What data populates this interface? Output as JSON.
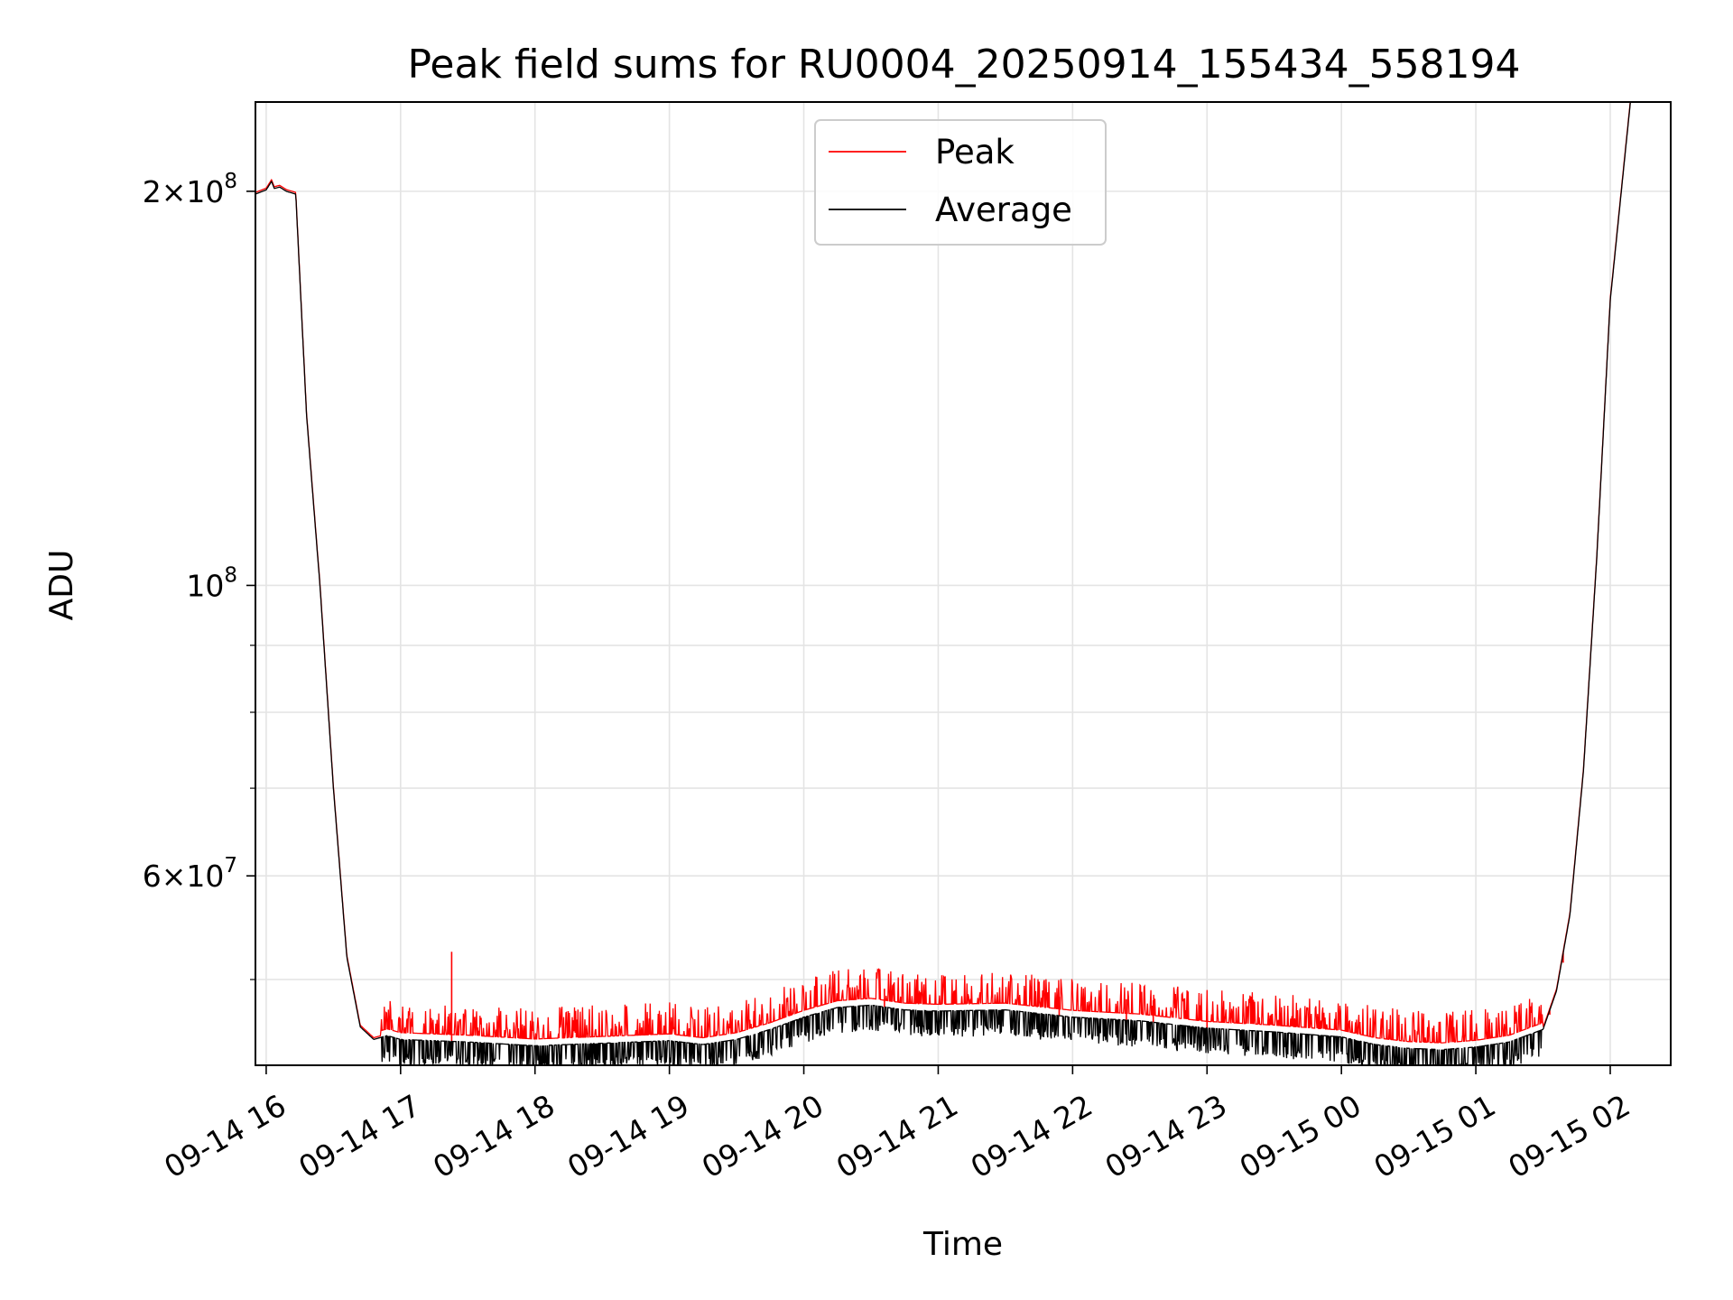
{
  "chart_data": {
    "type": "line",
    "title": "Peak field sums for RU0004_20250914_155434_558194",
    "xlabel": "Time",
    "ylabel": "ADU",
    "yscale": "log",
    "ylim": [
      43000000,
      234000000
    ],
    "xlim_hours_from_0914_16": [
      -0.08,
      10.45
    ],
    "grid": true,
    "legend": {
      "position": "top-center",
      "entries": [
        {
          "name": "Peak",
          "color": "#ff0000"
        },
        {
          "name": "Average",
          "color": "#000000"
        }
      ]
    },
    "x_ticks": [
      {
        "label": "09-14 16",
        "hours": 0
      },
      {
        "label": "09-14 17",
        "hours": 1
      },
      {
        "label": "09-14 18",
        "hours": 2
      },
      {
        "label": "09-14 19",
        "hours": 3
      },
      {
        "label": "09-14 20",
        "hours": 4
      },
      {
        "label": "09-14 21",
        "hours": 5
      },
      {
        "label": "09-14 22",
        "hours": 6
      },
      {
        "label": "09-14 23",
        "hours": 7
      },
      {
        "label": "09-15 00",
        "hours": 8
      },
      {
        "label": "09-15 01",
        "hours": 9
      },
      {
        "label": "09-15 02",
        "hours": 10
      }
    ],
    "y_major_ticks": [
      {
        "base": "2",
        "times": "×",
        "exp_base": "10",
        "exp": "8",
        "value": 200000000
      },
      {
        "base": "",
        "times": "",
        "exp_base": "10",
        "exp": "8",
        "value": 100000000
      },
      {
        "base": "6",
        "times": "×",
        "exp_base": "10",
        "exp": "7",
        "value": 60000000
      }
    ],
    "y_minor_ticks": [
      50000000,
      70000000,
      80000000,
      90000000
    ],
    "series": [
      {
        "name": "Average",
        "color": "#000000",
        "x_hours": [
          -0.08,
          0.0,
          0.04,
          0.06,
          0.1,
          0.15,
          0.22,
          0.3,
          0.4,
          0.5,
          0.6,
          0.7,
          0.8,
          0.9,
          1.0,
          1.5,
          2.0,
          2.5,
          3.0,
          3.25,
          3.5,
          3.75,
          4.0,
          4.25,
          4.5,
          4.75,
          5.0,
          5.5,
          6.0,
          6.5,
          7.0,
          7.5,
          8.0,
          8.25,
          8.5,
          8.75,
          9.0,
          9.25,
          9.5,
          9.6,
          9.7,
          9.8,
          9.9,
          10.0,
          10.15
        ],
        "values": [
          199000000,
          200500000,
          203500000,
          201000000,
          201500000,
          200000000,
          199000000,
          135000000,
          100000000,
          70000000,
          52000000,
          46000000,
          45000000,
          45300000,
          45000000,
          44800000,
          44500000,
          44700000,
          44900000,
          44600000,
          45000000,
          45800000,
          46800000,
          47600000,
          47800000,
          47400000,
          47300000,
          47400000,
          46800000,
          46500000,
          45900000,
          45600000,
          45200000,
          44600000,
          44300000,
          44200000,
          44400000,
          44800000,
          45800000,
          49000000,
          56000000,
          72000000,
          105000000,
          165000000,
          234000000
        ]
      },
      {
        "name": "Peak",
        "color": "#ff0000",
        "spikes_x_hours": [
          1.38,
          4.6,
          5.9,
          6.4,
          6.6,
          7.0,
          9.55,
          9.65
        ],
        "spikes_values": [
          52500000,
          49200000,
          48500000,
          48300000,
          48200000,
          47300000,
          47000000,
          51500000
        ]
      }
    ]
  }
}
